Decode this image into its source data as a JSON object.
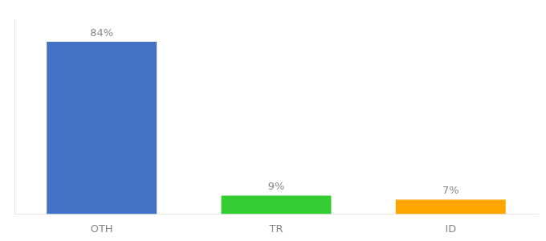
{
  "chart_data": {
    "type": "bar",
    "categories": [
      "OTH",
      "TR",
      "ID"
    ],
    "values": [
      84,
      9,
      7
    ],
    "value_labels": [
      "84%",
      "9%",
      "7%"
    ],
    "colors": [
      "#4472C4",
      "#33CC33",
      "#FFA500"
    ],
    "ylim": [
      0,
      95
    ],
    "data_labels": true,
    "tick_labels": "x",
    "grid": false
  }
}
